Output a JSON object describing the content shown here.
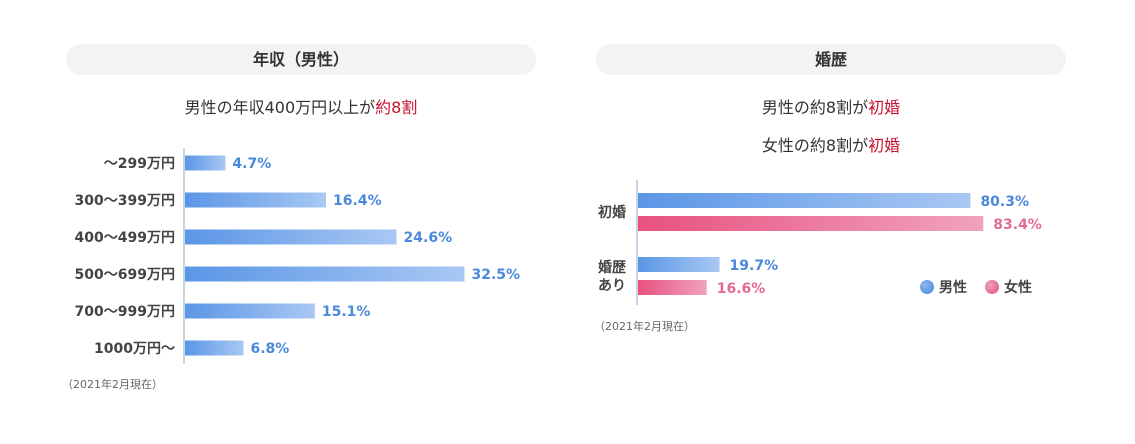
{
  "chart_data": [
    {
      "type": "bar",
      "orientation": "horizontal",
      "title": "年収（男性）",
      "headline": {
        "prefix": "男性の年収400万円以上が",
        "highlight": "約8割"
      },
      "categories": [
        "～299万円",
        "300～399万円",
        "400～499万円",
        "500～699万円",
        "700～999万円",
        "1000万円～"
      ],
      "values": [
        4.7,
        16.4,
        24.6,
        32.5,
        15.1,
        6.8
      ],
      "value_labels": [
        "4.7%",
        "16.4%",
        "24.6%",
        "32.5%",
        "15.1%",
        "6.8%"
      ],
      "xlim": [
        0,
        100
      ],
      "note": "（2021年2月現在）",
      "colors": {
        "bar_start": "#5b96e6",
        "bar_end": "#a9c8f3",
        "label": "#4a89dc"
      }
    },
    {
      "type": "bar",
      "orientation": "horizontal",
      "title": "婚歴",
      "headlines": [
        {
          "prefix": "男性の約8割が",
          "highlight": "初婚"
        },
        {
          "prefix": "女性の約8割が",
          "highlight": "初婚"
        }
      ],
      "categories": [
        "初婚",
        "婚歴\nあり"
      ],
      "series": [
        {
          "name": "男性",
          "values": [
            80.3,
            19.7
          ],
          "value_labels": [
            "80.3%",
            "19.7%"
          ],
          "color": "#4a89dc",
          "bar_start": "#5b96e6",
          "bar_end": "#a9c8f3"
        },
        {
          "name": "女性",
          "values": [
            83.4,
            16.6
          ],
          "value_labels": [
            "83.4%",
            "16.6%"
          ],
          "color": "#e36a93",
          "bar_start": "#e8527f",
          "bar_end": "#f0a2bf"
        }
      ],
      "xlim": [
        0,
        100
      ],
      "legend": "bottom-right",
      "note": "（2021年2月現在）"
    }
  ],
  "colors": {
    "highlight": "#c8102e",
    "pill_bg": "#f3f3f3",
    "axis": "#8fa9c6"
  }
}
